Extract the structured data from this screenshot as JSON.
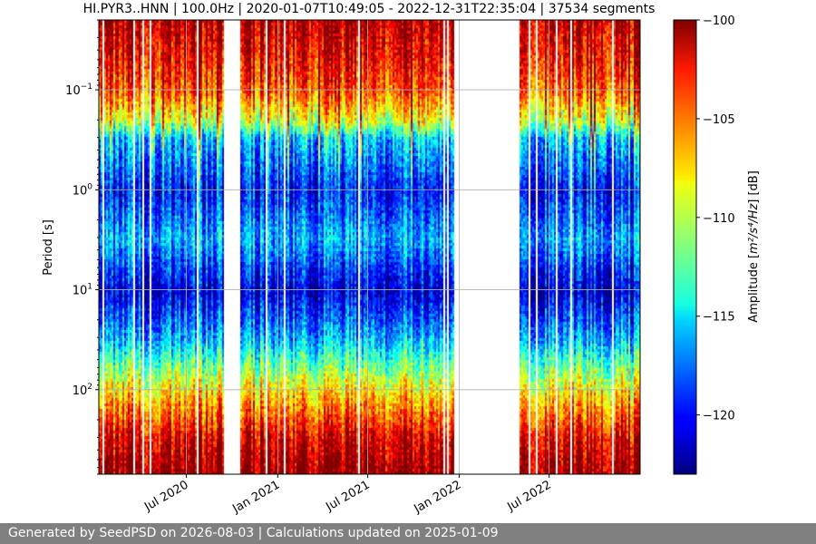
{
  "chart_data": {
    "type": "heatmap",
    "title": "HI.PYR3..HNN | 100.0Hz | 2020-01-07T10:49:05 - 2022-12-31T22:35:04 | 37534 segments",
    "ylabel": "Period [s]",
    "y_scale": "log",
    "y_inverted": true,
    "y_range": [
      0.02,
      700
    ],
    "x_range": [
      "2020-01-07",
      "2022-12-31"
    ],
    "x_ticks": [
      {
        "date": "2020-07-01",
        "label": "Jul 2020"
      },
      {
        "date": "2021-01-01",
        "label": "Jan 2021"
      },
      {
        "date": "2021-07-01",
        "label": "Jul 2021"
      },
      {
        "date": "2022-01-01",
        "label": "Jan 2022"
      },
      {
        "date": "2022-07-01",
        "label": "Jul 2022"
      }
    ],
    "y_ticks": [
      {
        "value": 0.1,
        "base": "10",
        "exp": "−1"
      },
      {
        "value": 1,
        "base": "10",
        "exp": "0"
      },
      {
        "value": 10,
        "base": "10",
        "exp": "1"
      },
      {
        "value": 100,
        "base": "10",
        "exp": "2"
      }
    ],
    "grid": true,
    "data_gaps": [
      {
        "start": "2020-09-13",
        "end": "2020-10-12"
      },
      {
        "start": "2021-12-22",
        "end": "2022-04-29"
      }
    ],
    "colorbar": {
      "label_prefix": "Amplitude [",
      "label_unit_html": "m²/s⁴/Hz",
      "label_suffix": "] [dB]",
      "colormap": "jet",
      "min": -123,
      "max": -100,
      "ticks": [
        "−100",
        "−105",
        "−110",
        "−115",
        "−120"
      ],
      "tick_values": [
        -100,
        -105,
        -110,
        -115,
        -120
      ]
    },
    "amplitude_by_period": [
      {
        "period": 0.02,
        "db": -101
      },
      {
        "period": 0.05,
        "db": -103
      },
      {
        "period": 0.1,
        "db": -105
      },
      {
        "period": 0.2,
        "db": -110
      },
      {
        "period": 0.3,
        "db": -116
      },
      {
        "period": 1,
        "db": -120
      },
      {
        "period": 3,
        "db": -116
      },
      {
        "period": 10,
        "db": -121
      },
      {
        "period": 30,
        "db": -116
      },
      {
        "period": 100,
        "db": -108
      },
      {
        "period": 300,
        "db": -102
      },
      {
        "period": 700,
        "db": -100
      }
    ]
  },
  "footer": {
    "text": "Generated by SeedPSD on 2026-08-03 | Calculations updated on 2025-01-09"
  }
}
